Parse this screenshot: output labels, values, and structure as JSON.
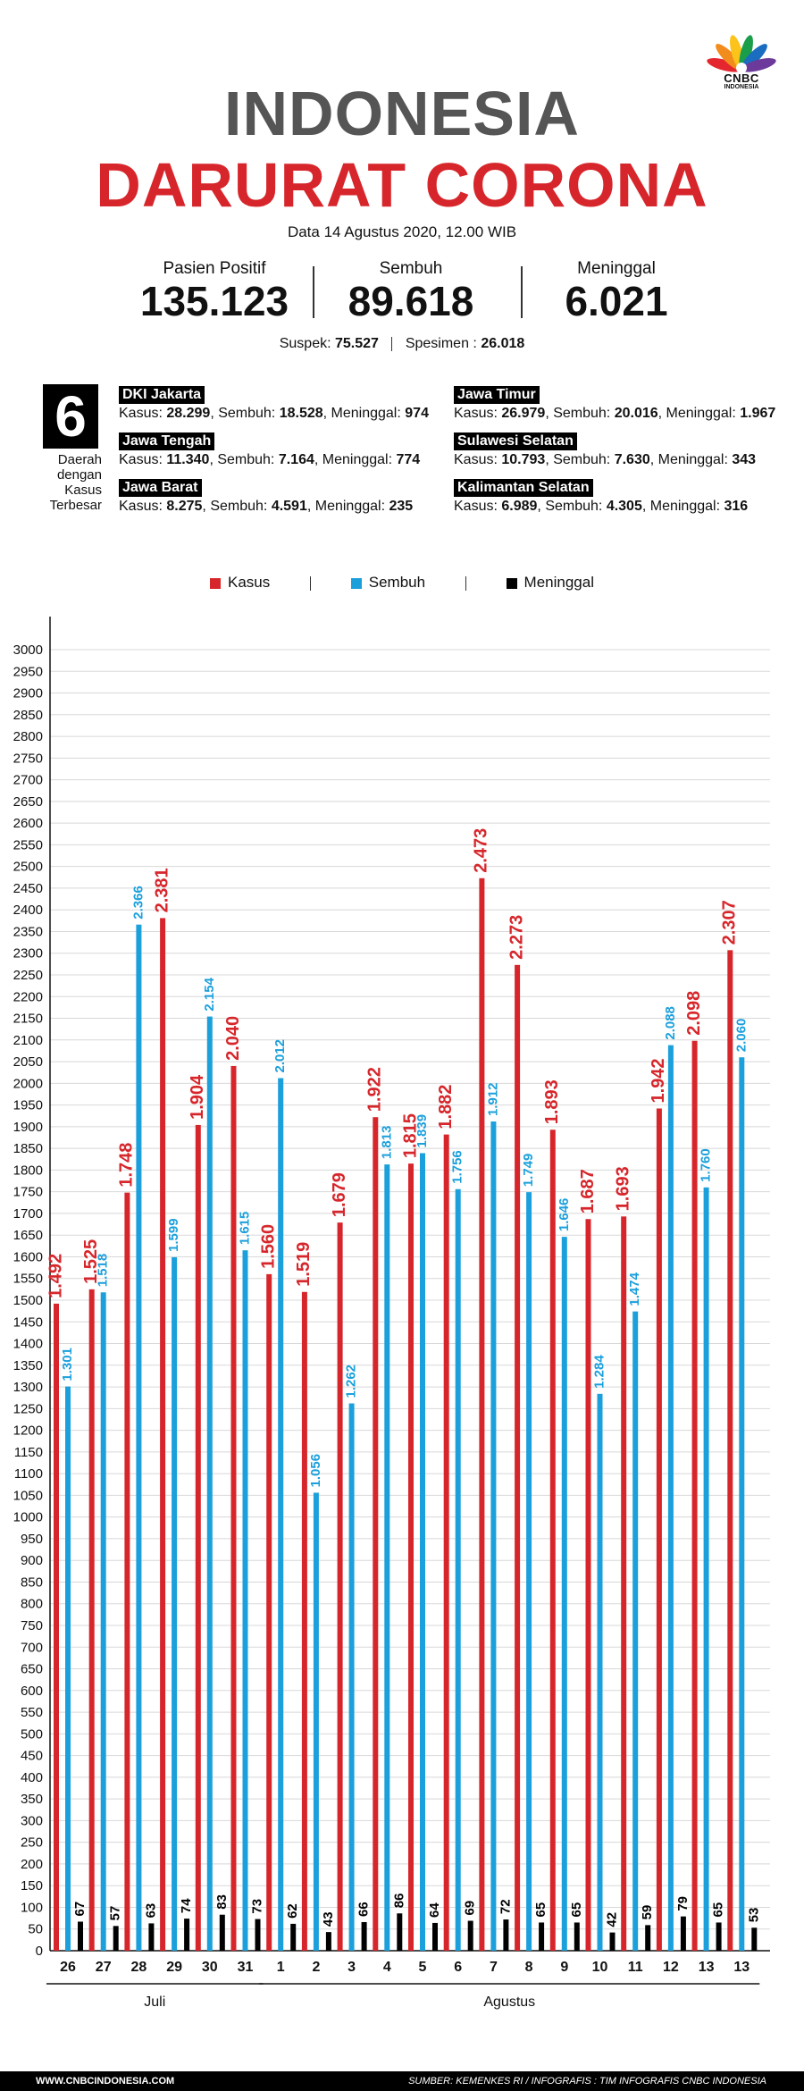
{
  "logo": {
    "name": "CNBC",
    "sub": "INDONESIA"
  },
  "title": {
    "line1": "INDONESIA",
    "line2": "DARURAT CORONA"
  },
  "date_text": "Data 14 Agustus 2020, 12.00 WIB",
  "stats": [
    {
      "label": "Pasien Positif",
      "value": "135.123"
    },
    {
      "label": "Sembuh",
      "value": "89.618"
    },
    {
      "label": "Meninggal",
      "value": "6.021"
    }
  ],
  "substats": {
    "suspek_label": "Suspek:",
    "suspek_value": "75.527",
    "spesimen_label": "Spesimen :",
    "spesimen_value": "26.018"
  },
  "regions_box": {
    "number": "6",
    "caption_lines": [
      "Daerah",
      "dengan",
      "Kasus",
      "Terbesar"
    ]
  },
  "regions": [
    {
      "name": "DKI Jakarta",
      "kasus": "28.299",
      "sembuh": "18.528",
      "meninggal": "974"
    },
    {
      "name": "Jawa Tengah",
      "kasus": "11.340",
      "sembuh": "7.164",
      "meninggal": "774"
    },
    {
      "name": "Jawa Barat",
      "kasus": "8.275",
      "sembuh": "4.591",
      "meninggal": "235"
    },
    {
      "name": "Jawa Timur",
      "kasus": "26.979",
      "sembuh": "20.016",
      "meninggal": "1.967"
    },
    {
      "name": "Sulawesi Selatan",
      "kasus": "10.793",
      "sembuh": "7.630",
      "meninggal": "343"
    },
    {
      "name": "Kalimantan Selatan",
      "kasus": "6.989",
      "sembuh": "4.305",
      "meninggal": "316"
    }
  ],
  "region_labels": {
    "kasus": "Kasus:",
    "sembuh": "Sembuh:",
    "meninggal": "Meninggal:"
  },
  "colors": {
    "kasus": "#d7262b",
    "sembuh": "#1ba0dc",
    "meninggal": "#000000",
    "title_gray": "#555555"
  },
  "chart_data": {
    "type": "bar",
    "categories": [
      "26",
      "27",
      "28",
      "29",
      "30",
      "31",
      "1",
      "2",
      "3",
      "4",
      "5",
      "6",
      "7",
      "8",
      "9",
      "10",
      "11",
      "12",
      "13",
      "13"
    ],
    "month_groups": [
      {
        "label": "Juli",
        "from": 0,
        "to": 5
      },
      {
        "label": "Agustus",
        "from": 6,
        "to": 19
      }
    ],
    "series": [
      {
        "name": "Kasus",
        "values": [
          1492,
          1525,
          1748,
          2381,
          1904,
          2040,
          1560,
          1519,
          1679,
          1922,
          1815,
          1882,
          2473,
          2273,
          1893,
          1687,
          1693,
          1942,
          2098,
          2307
        ],
        "labels": [
          "1.492",
          "1.525",
          "1.748",
          "2.381",
          "1.904",
          "2.040",
          "1.560",
          "1.519",
          "1.679",
          "1.922",
          "1.815",
          "1.882",
          "2.473",
          "2.273",
          "1.893",
          "1.687",
          "1.693",
          "1.942",
          "2.098",
          "2.307"
        ]
      },
      {
        "name": "Sembuh",
        "values": [
          1301,
          1518,
          2366,
          1599,
          2154,
          1615,
          2012,
          1056,
          1262,
          1813,
          1839,
          1756,
          1912,
          1749,
          1646,
          1284,
          1474,
          2088,
          1760,
          2060
        ],
        "labels": [
          "1.301",
          "1.518",
          "2.366",
          "1.599",
          "2.154",
          "1.615",
          "2.012",
          "1.056",
          "1.262",
          "1.813",
          "1.839",
          "1.756",
          "1.912",
          "1.749",
          "1.646",
          "1.284",
          "1.474",
          "2.088",
          "1.760",
          "2.060"
        ]
      },
      {
        "name": "Meninggal",
        "values": [
          67,
          57,
          63,
          74,
          83,
          73,
          62,
          43,
          66,
          86,
          64,
          69,
          72,
          65,
          65,
          42,
          59,
          79,
          65,
          53
        ],
        "labels": [
          "67",
          "57",
          "63",
          "74",
          "83",
          "73",
          "62",
          "43",
          "66",
          "86",
          "64",
          "69",
          "72",
          "65",
          "65",
          "42",
          "59",
          "79",
          "65",
          "53"
        ]
      }
    ],
    "ylim": [
      0,
      3000
    ],
    "yticks": [
      0,
      50,
      100,
      150,
      200,
      250,
      300,
      350,
      400,
      450,
      500,
      550,
      600,
      650,
      700,
      750,
      800,
      850,
      900,
      950,
      1000,
      1050,
      1100,
      1150,
      1200,
      1250,
      1300,
      1350,
      1400,
      1450,
      1500,
      1550,
      1600,
      1650,
      1700,
      1750,
      1800,
      1850,
      1900,
      1950,
      2000,
      2050,
      2100,
      2150,
      2200,
      2250,
      2300,
      2350,
      2400,
      2450,
      2500,
      2550,
      2600,
      2650,
      2700,
      2750,
      2800,
      2850,
      2900,
      2950,
      3000
    ],
    "grid": true,
    "legend_position": "top-center"
  },
  "footer": {
    "left": "WWW.CNBCINDONESIA.COM",
    "right": "SUMBER: KEMENKES RI / INFOGRAFIS : TIM INFOGRAFIS CNBC INDONESIA"
  }
}
